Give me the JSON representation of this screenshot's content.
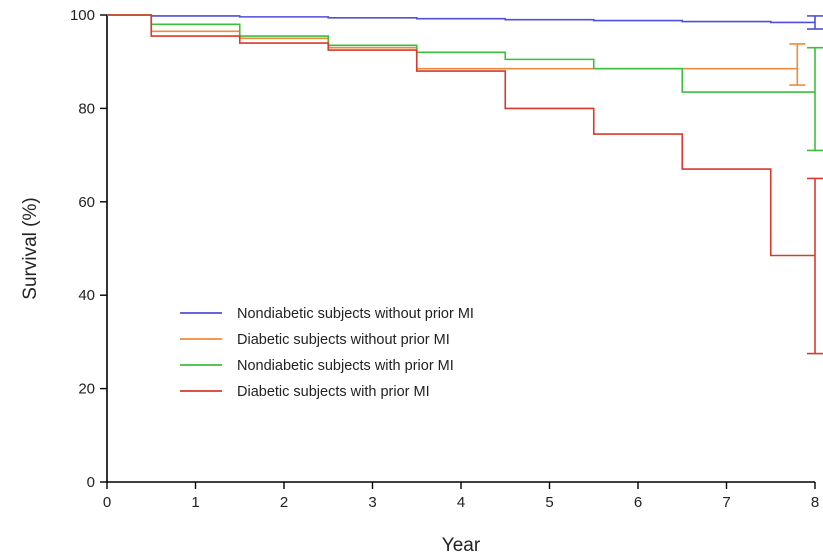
{
  "chart_data": {
    "type": "line",
    "step": true,
    "xlabel": "Year",
    "ylabel": "Survival (%)",
    "xlim": [
      0,
      8
    ],
    "ylim": [
      0,
      100
    ],
    "xticks": [
      "0",
      "1",
      "2",
      "3",
      "4",
      "5",
      "6",
      "7",
      "8"
    ],
    "yticks": [
      "0",
      "20",
      "40",
      "60",
      "80",
      "100"
    ],
    "grid": false,
    "legend_position": "lower-left",
    "series": [
      {
        "name": "Nondiabetic subjects without prior MI",
        "color": "#4f4fd9",
        "x": [
          0,
          0.5,
          1.5,
          2.5,
          3.5,
          4.5,
          5.5,
          6.5,
          7.5,
          8
        ],
        "y": [
          100,
          99.8,
          99.6,
          99.4,
          99.2,
          99,
          98.8,
          98.6,
          98.4,
          98.4
        ],
        "error_at_end": [
          97,
          99.8
        ]
      },
      {
        "name": "Diabetic subjects without prior MI",
        "color": "#f28a3c",
        "x": [
          0,
          0.5,
          1.5,
          2.5,
          3.5,
          4.5,
          5.5,
          6.5,
          7.5,
          7.8
        ],
        "y": [
          100,
          96.5,
          95,
          93,
          88.5,
          88.5,
          88.5,
          88.5,
          88.5,
          88.5
        ],
        "error_at_end": [
          85,
          93.8
        ]
      },
      {
        "name": "Nondiabetic subjects with prior MI",
        "color": "#3cbf3c",
        "x": [
          0,
          0.5,
          1.5,
          2.5,
          3.5,
          4.5,
          5.5,
          6.5,
          7.5,
          8
        ],
        "y": [
          100,
          98,
          95.5,
          93.5,
          92,
          90.5,
          88.5,
          83.5,
          83.5,
          83.5
        ],
        "error_at_end": [
          71,
          93
        ]
      },
      {
        "name": "Diabetic subjects with prior MI",
        "color": "#d93a2b",
        "x": [
          0,
          0.5,
          1.5,
          2.5,
          3.5,
          4.5,
          5.5,
          6.5,
          7.5,
          8
        ],
        "y": [
          100,
          95.5,
          94,
          92.5,
          88,
          80,
          74.5,
          67,
          48.5,
          48.5
        ],
        "error_at_end": [
          27.5,
          65
        ]
      }
    ]
  }
}
